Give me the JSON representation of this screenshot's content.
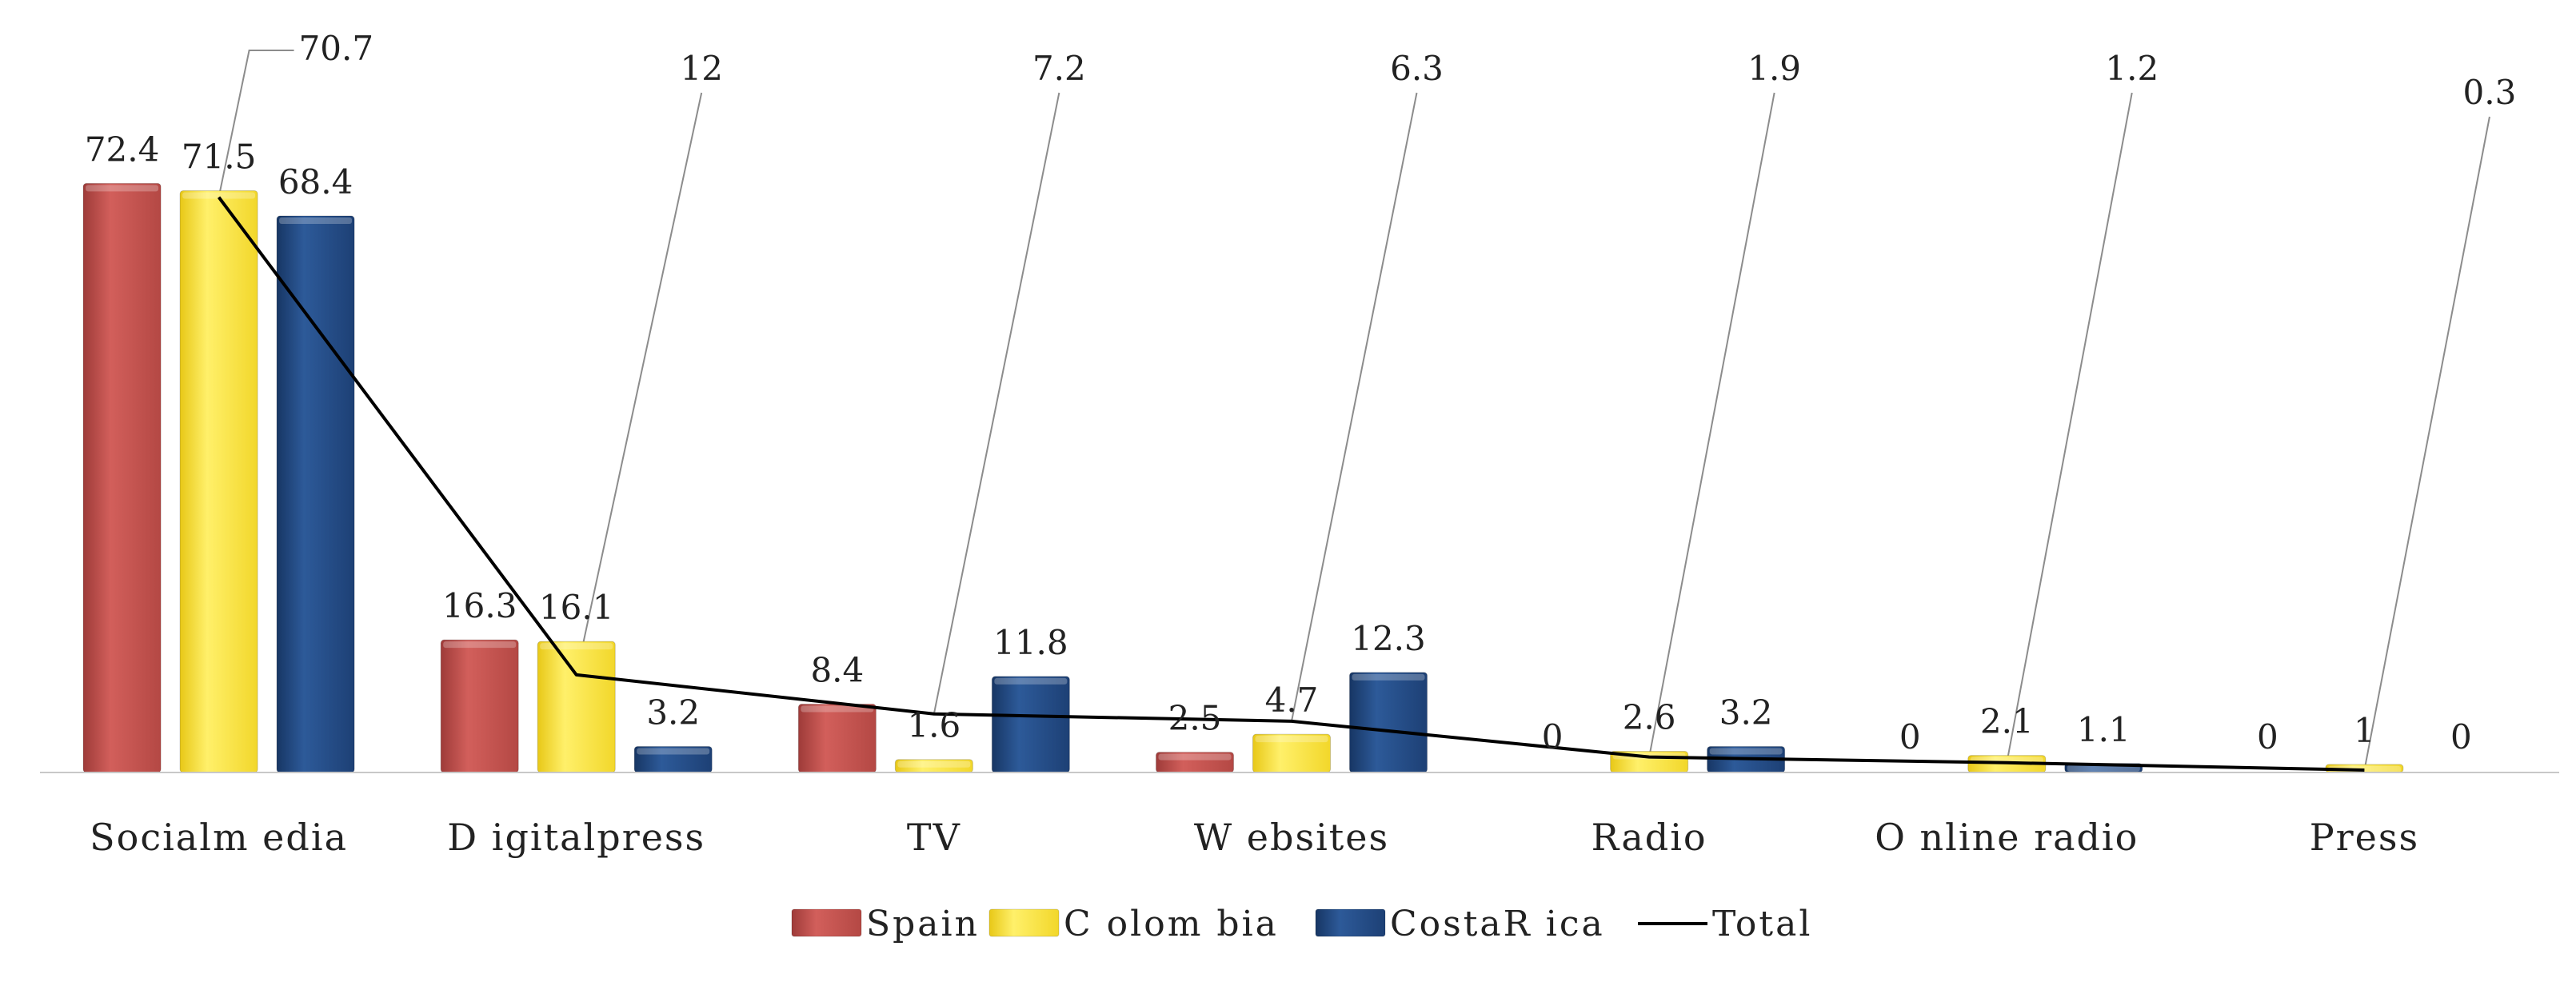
{
  "chart_data": {
    "type": "bar",
    "title": "",
    "xlabel": "",
    "ylabel": "",
    "ylim": [
      0,
      80
    ],
    "grid": false,
    "legend_position": "bottom",
    "categories": [
      "Socialm edia",
      "D igitalpress",
      "TV",
      "W ebsites",
      "Radio",
      "O nline radio",
      "Press"
    ],
    "series": [
      {
        "name": "Spain",
        "type": "bar",
        "color": "#c0504d",
        "values": [
          72.4,
          16.3,
          8.4,
          2.5,
          0,
          0,
          0
        ]
      },
      {
        "name": "C olom bia",
        "type": "bar",
        "color": "#ffe640",
        "values": [
          71.5,
          16.1,
          1.6,
          4.7,
          2.6,
          2.1,
          1
        ]
      },
      {
        "name": "CostaR ica",
        "type": "bar",
        "color": "#23497f",
        "values": [
          68.4,
          3.2,
          11.8,
          12.3,
          3.2,
          1.1,
          0
        ]
      },
      {
        "name": "Total",
        "type": "line",
        "color": "#000000",
        "values": [
          70.7,
          12,
          7.2,
          6.3,
          1.9,
          1.2,
          0.3
        ]
      }
    ]
  }
}
